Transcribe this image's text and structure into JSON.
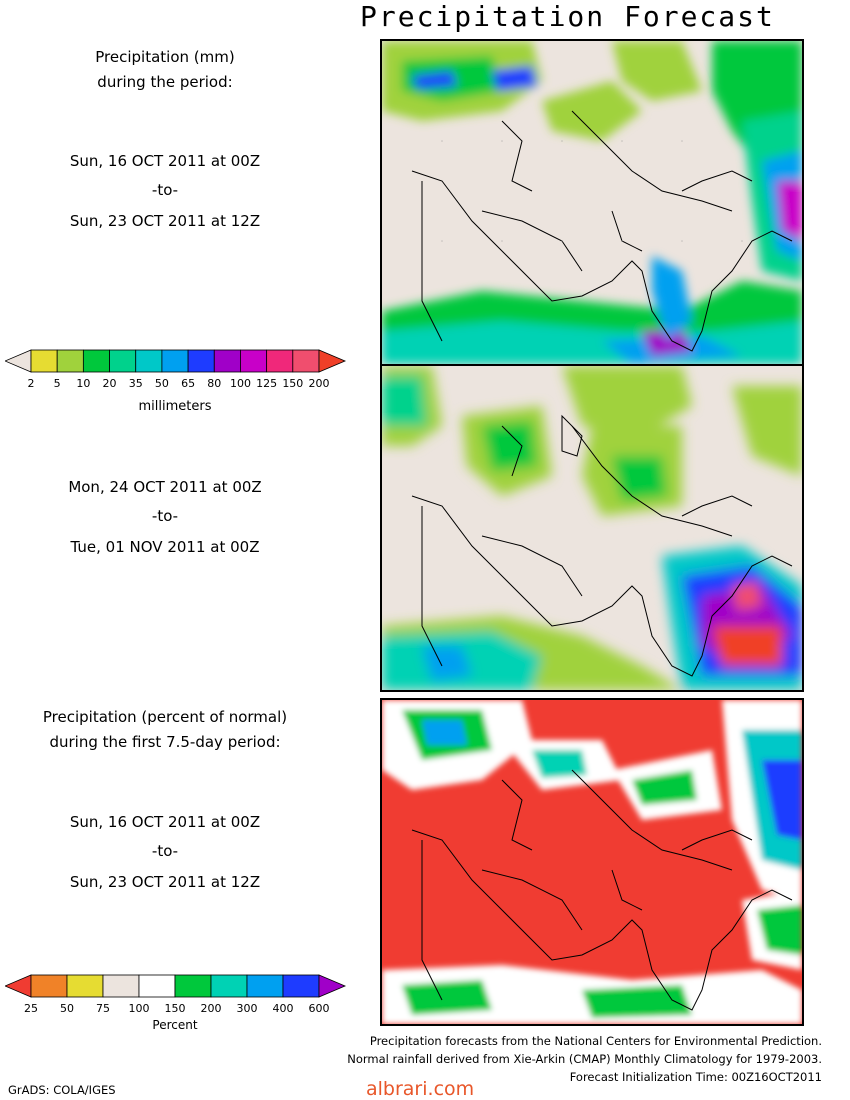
{
  "title": "Precipitation Forecast",
  "panel1": {
    "heading_line1": "Precipitation (mm)",
    "heading_line2": "during the period:",
    "start": "Sun, 16 OCT 2011 at 00Z",
    "to": "-to-",
    "end": "Sun, 23 OCT 2011 at 12Z"
  },
  "panel2": {
    "start": "Mon, 24 OCT 2011 at 00Z",
    "to": "-to-",
    "end": "Tue, 01 NOV 2011 at 00Z"
  },
  "panel3": {
    "heading_line1": "Precipitation (percent of normal)",
    "heading_line2": "during the first 7.5-day period:",
    "start": "Sun, 16 OCT 2011 at 00Z",
    "to": "-to-",
    "end": "Sun, 23 OCT 2011 at 12Z"
  },
  "mm_scale": {
    "unit": "millimeters",
    "ticks": [
      "2",
      "5",
      "10",
      "20",
      "35",
      "50",
      "65",
      "80",
      "100",
      "125",
      "150",
      "200"
    ],
    "colors": [
      "#ece4de",
      "#e6dc32",
      "#a0d23c",
      "#00c83c",
      "#00d28c",
      "#00c8c8",
      "#00a0f0",
      "#1e3cff",
      "#a000c8",
      "#c800c8",
      "#f0287a",
      "#f04e6e",
      "#f04028"
    ]
  },
  "pct_scale": {
    "unit": "Percent",
    "ticks": [
      "25",
      "50",
      "75",
      "100",
      "150",
      "200",
      "300",
      "400",
      "600"
    ],
    "colors": [
      "#f03c32",
      "#f08228",
      "#e6dc32",
      "#ece4de",
      "#ffffff",
      "#00c83c",
      "#00d2b4",
      "#00a0f0",
      "#1e3cff",
      "#a000c8"
    ]
  },
  "credits": {
    "line1": "Precipitation forecasts from the National Centers for Environmental Prediction.",
    "line2": "Normal rainfall derived from Xie-Arkin (CMAP) Monthly Climatology for 1979-2003.",
    "line3": "Forecast Initialization Time: 00Z16OCT2011"
  },
  "watermark": "albrari.com",
  "software": "GrADS: COLA/IGES"
}
